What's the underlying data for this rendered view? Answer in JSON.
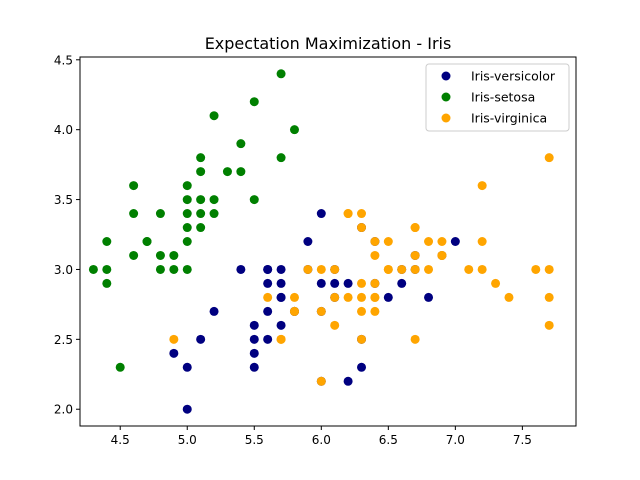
{
  "chart_data": {
    "type": "scatter",
    "title": "Expectation Maximization - Iris",
    "xlabel": "",
    "ylabel": "",
    "xlim": [
      4.2,
      7.9
    ],
    "ylim": [
      1.88,
      4.52
    ],
    "xticks": [
      4.5,
      5.0,
      5.5,
      6.0,
      6.5,
      7.0,
      7.5
    ],
    "xtick_labels": [
      "4.5",
      "5.0",
      "5.5",
      "6.0",
      "6.5",
      "7.0",
      "7.5"
    ],
    "yticks": [
      2.0,
      2.5,
      3.0,
      3.5,
      4.0,
      4.5
    ],
    "ytick_labels": [
      "2.0",
      "2.5",
      "3.0",
      "3.5",
      "4.0",
      "4.5"
    ],
    "grid": false,
    "legend_position": "top-right",
    "series": [
      {
        "name": "Iris-versicolor",
        "color": "#000080",
        "points": [
          [
            7.0,
            3.2
          ],
          [
            6.4,
            3.2
          ],
          [
            6.9,
            3.1
          ],
          [
            5.5,
            2.3
          ],
          [
            6.5,
            2.8
          ],
          [
            5.7,
            2.8
          ],
          [
            6.3,
            3.3
          ],
          [
            4.9,
            2.4
          ],
          [
            6.6,
            2.9
          ],
          [
            5.2,
            2.7
          ],
          [
            5.0,
            2.0
          ],
          [
            5.9,
            3.0
          ],
          [
            6.0,
            2.2
          ],
          [
            6.1,
            2.9
          ],
          [
            5.6,
            2.9
          ],
          [
            6.7,
            3.1
          ],
          [
            5.6,
            3.0
          ],
          [
            5.8,
            2.7
          ],
          [
            6.2,
            2.2
          ],
          [
            5.6,
            2.5
          ],
          [
            5.9,
            3.2
          ],
          [
            6.1,
            2.8
          ],
          [
            6.3,
            2.5
          ],
          [
            6.4,
            2.9
          ],
          [
            6.6,
            3.0
          ],
          [
            6.8,
            2.8
          ],
          [
            6.7,
            3.0
          ],
          [
            6.0,
            2.9
          ],
          [
            5.7,
            2.6
          ],
          [
            5.5,
            2.4
          ],
          [
            5.8,
            2.7
          ],
          [
            6.0,
            2.7
          ],
          [
            5.4,
            3.0
          ],
          [
            6.0,
            3.4
          ],
          [
            6.3,
            2.3
          ],
          [
            5.6,
            3.0
          ],
          [
            5.5,
            2.5
          ],
          [
            5.5,
            2.6
          ],
          [
            6.1,
            3.0
          ],
          [
            5.0,
            2.3
          ],
          [
            5.6,
            2.7
          ],
          [
            5.7,
            3.0
          ],
          [
            5.7,
            2.9
          ],
          [
            6.2,
            2.9
          ],
          [
            5.1,
            2.5
          ],
          [
            5.7,
            2.8
          ]
        ]
      },
      {
        "name": "Iris-setosa",
        "color": "#008000",
        "points": [
          [
            5.1,
            3.5
          ],
          [
            4.9,
            3.0
          ],
          [
            4.7,
            3.2
          ],
          [
            4.6,
            3.1
          ],
          [
            5.0,
            3.6
          ],
          [
            5.4,
            3.9
          ],
          [
            4.6,
            3.4
          ],
          [
            5.0,
            3.4
          ],
          [
            4.4,
            2.9
          ],
          [
            4.9,
            3.1
          ],
          [
            5.4,
            3.7
          ],
          [
            4.8,
            3.4
          ],
          [
            4.8,
            3.0
          ],
          [
            4.3,
            3.0
          ],
          [
            5.8,
            4.0
          ],
          [
            5.7,
            4.4
          ],
          [
            5.1,
            3.8
          ],
          [
            5.7,
            3.8
          ],
          [
            5.1,
            3.7
          ],
          [
            5.1,
            3.3
          ],
          [
            4.8,
            3.1
          ],
          [
            5.2,
            3.4
          ],
          [
            4.7,
            3.2
          ],
          [
            5.2,
            4.1
          ],
          [
            5.5,
            4.2
          ],
          [
            5.0,
            3.2
          ],
          [
            5.5,
            3.5
          ],
          [
            4.4,
            3.0
          ],
          [
            5.1,
            3.4
          ],
          [
            5.0,
            3.5
          ],
          [
            4.5,
            2.3
          ],
          [
            5.0,
            3.0
          ],
          [
            5.3,
            3.7
          ],
          [
            5.0,
            3.3
          ],
          [
            4.6,
            3.6
          ],
          [
            5.2,
            3.5
          ],
          [
            4.4,
            3.2
          ]
        ]
      },
      {
        "name": "Iris-virginica",
        "color": "#FFA500",
        "points": [
          [
            6.3,
            3.3
          ],
          [
            5.8,
            2.7
          ],
          [
            7.1,
            3.0
          ],
          [
            6.3,
            2.9
          ],
          [
            6.5,
            3.0
          ],
          [
            7.6,
            3.0
          ],
          [
            4.9,
            2.5
          ],
          [
            7.3,
            2.9
          ],
          [
            6.7,
            2.5
          ],
          [
            7.2,
            3.6
          ],
          [
            6.5,
            3.2
          ],
          [
            6.4,
            2.7
          ],
          [
            6.8,
            3.0
          ],
          [
            5.7,
            2.5
          ],
          [
            5.8,
            2.8
          ],
          [
            6.4,
            3.2
          ],
          [
            7.7,
            3.8
          ],
          [
            7.7,
            2.6
          ],
          [
            6.0,
            2.2
          ],
          [
            6.9,
            3.2
          ],
          [
            5.6,
            2.8
          ],
          [
            7.7,
            2.8
          ],
          [
            6.3,
            2.7
          ],
          [
            6.7,
            3.3
          ],
          [
            7.2,
            3.2
          ],
          [
            6.2,
            2.8
          ],
          [
            6.1,
            3.0
          ],
          [
            6.4,
            2.8
          ],
          [
            7.2,
            3.0
          ],
          [
            7.4,
            2.8
          ],
          [
            6.4,
            2.8
          ],
          [
            6.3,
            2.8
          ],
          [
            6.1,
            2.6
          ],
          [
            7.7,
            3.0
          ],
          [
            6.3,
            3.4
          ],
          [
            6.4,
            3.1
          ],
          [
            6.0,
            3.0
          ],
          [
            6.9,
            3.1
          ],
          [
            6.7,
            3.1
          ],
          [
            6.9,
            3.1
          ],
          [
            5.8,
            2.7
          ],
          [
            6.8,
            3.2
          ],
          [
            6.7,
            3.3
          ],
          [
            6.7,
            3.0
          ],
          [
            6.3,
            2.5
          ],
          [
            6.5,
            3.0
          ],
          [
            6.2,
            3.4
          ],
          [
            5.9,
            3.0
          ],
          [
            6.1,
            2.8
          ],
          [
            6.4,
            2.9
          ],
          [
            6.6,
            3.0
          ],
          [
            6.0,
            2.7
          ],
          [
            5.7,
            2.5
          ],
          [
            6.2,
            3.4
          ]
        ]
      }
    ]
  }
}
